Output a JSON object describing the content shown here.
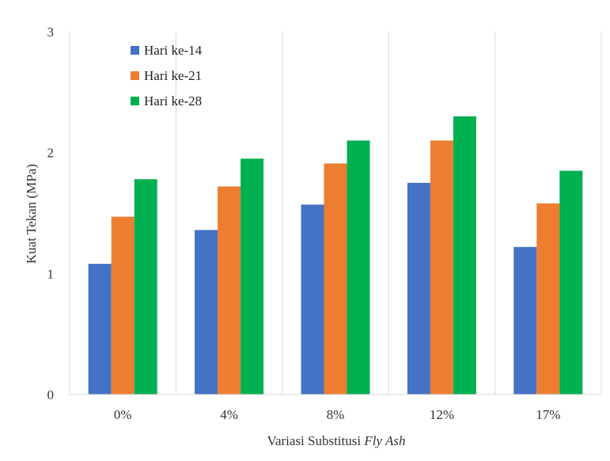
{
  "chart_data": {
    "type": "bar",
    "categories": [
      "0%",
      "4%",
      "8%",
      "12%",
      "17%"
    ],
    "series": [
      {
        "name": "Hari ke-14",
        "color": "#4472C4",
        "values": [
          1.08,
          1.36,
          1.57,
          1.75,
          1.22
        ]
      },
      {
        "name": "Hari ke-21",
        "color": "#ED7D31",
        "values": [
          1.47,
          1.72,
          1.91,
          2.1,
          1.58
        ]
      },
      {
        "name": "Hari ke-28",
        "color": "#00B050",
        "values": [
          1.78,
          1.95,
          2.1,
          2.3,
          1.85
        ]
      }
    ],
    "title": "",
    "xlabel_prefix": "Variasi Substitusi ",
    "xlabel_italic": "Fly Ash",
    "ylabel": "Kuat Tekan (MPa)",
    "ylim": [
      0,
      3
    ],
    "yticks": [
      "0",
      "1",
      "2",
      "3"
    ],
    "grid": "vertical category separators",
    "legend_position": "top-left"
  }
}
